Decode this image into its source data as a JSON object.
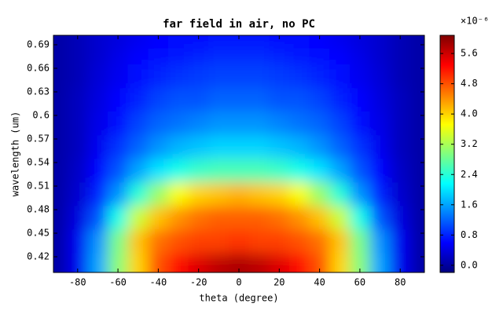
{
  "chart_data": {
    "type": "heatmap",
    "title": "far field in air, no PC",
    "x_label": "theta (degree)",
    "y_label": "wavelength (um)",
    "colorbar_label": "×10⁻⁶",
    "colormap": "jet",
    "x": [
      -90,
      -80,
      -70,
      -60,
      -50,
      -40,
      -30,
      -20,
      -10,
      0,
      10,
      20,
      30,
      40,
      50,
      60,
      70,
      80,
      90
    ],
    "y": [
      0.41,
      0.44,
      0.47,
      0.5,
      0.53,
      0.56,
      0.59,
      0.62,
      0.65,
      0.68,
      0.7
    ],
    "z": [
      [
        0.05,
        0.5,
        1.6,
        3.0,
        4.0,
        4.8,
        5.2,
        5.5,
        5.7,
        5.8,
        5.7,
        5.5,
        5.2,
        4.8,
        4.0,
        3.0,
        1.6,
        0.5,
        0.05
      ],
      [
        0.05,
        0.5,
        1.5,
        2.9,
        4.1,
        4.6,
        4.8,
        4.9,
        4.9,
        5.0,
        4.9,
        4.9,
        4.8,
        4.6,
        4.1,
        2.9,
        1.5,
        0.5,
        0.05
      ],
      [
        0.05,
        0.4,
        1.1,
        2.3,
        3.4,
        4.1,
        4.4,
        4.6,
        4.7,
        4.7,
        4.7,
        4.6,
        4.4,
        4.1,
        3.4,
        2.3,
        1.1,
        0.4,
        0.05
      ],
      [
        0.05,
        0.3,
        0.8,
        1.5,
        2.4,
        3.1,
        3.7,
        4.0,
        4.1,
        4.2,
        4.1,
        4.0,
        3.7,
        3.1,
        2.4,
        1.5,
        0.8,
        0.3,
        0.05
      ],
      [
        0.05,
        0.25,
        0.6,
        1.1,
        1.6,
        2.0,
        2.3,
        2.5,
        2.6,
        2.6,
        2.6,
        2.5,
        2.3,
        2.0,
        1.6,
        1.1,
        0.6,
        0.25,
        0.05
      ],
      [
        0.05,
        0.2,
        0.5,
        0.9,
        1.2,
        1.5,
        1.7,
        1.8,
        1.9,
        1.9,
        1.9,
        1.8,
        1.7,
        1.5,
        1.2,
        0.9,
        0.5,
        0.2,
        0.05
      ],
      [
        0.05,
        0.2,
        0.45,
        0.7,
        1.0,
        1.2,
        1.3,
        1.4,
        1.5,
        1.5,
        1.5,
        1.4,
        1.3,
        1.2,
        1.0,
        0.7,
        0.45,
        0.2,
        0.05
      ],
      [
        0.05,
        0.2,
        0.4,
        0.6,
        0.8,
        1.0,
        1.1,
        1.1,
        1.2,
        1.2,
        1.2,
        1.1,
        1.1,
        1.0,
        0.8,
        0.6,
        0.4,
        0.2,
        0.05
      ],
      [
        0.05,
        0.15,
        0.35,
        0.5,
        0.7,
        0.8,
        0.9,
        0.95,
        1.0,
        1.0,
        1.0,
        0.95,
        0.9,
        0.8,
        0.7,
        0.5,
        0.35,
        0.15,
        0.05
      ],
      [
        0.05,
        0.15,
        0.3,
        0.45,
        0.6,
        0.7,
        0.75,
        0.8,
        0.85,
        0.85,
        0.85,
        0.8,
        0.75,
        0.7,
        0.6,
        0.45,
        0.3,
        0.15,
        0.05
      ],
      [
        0.05,
        0.15,
        0.3,
        0.4,
        0.5,
        0.6,
        0.65,
        0.7,
        0.75,
        0.75,
        0.75,
        0.7,
        0.65,
        0.6,
        0.5,
        0.4,
        0.3,
        0.15,
        0.05
      ]
    ],
    "xlim": [
      -92,
      92
    ],
    "xticks": [
      -80,
      -60,
      -40,
      -20,
      0,
      20,
      40,
      60,
      80
    ],
    "ylim": [
      0.4,
      0.702
    ],
    "yticks": [
      0.42,
      0.45,
      0.48,
      0.51,
      0.54,
      0.57,
      0.6,
      0.63,
      0.66,
      0.69
    ],
    "clim": [
      -0.19,
      6.08
    ],
    "cticks": [
      {
        "value": 0,
        "label": "0.0"
      },
      0.8,
      1.6,
      2.4,
      3.2,
      {
        "value": 4,
        "label": "4.0"
      },
      4.8,
      5.6
    ]
  }
}
